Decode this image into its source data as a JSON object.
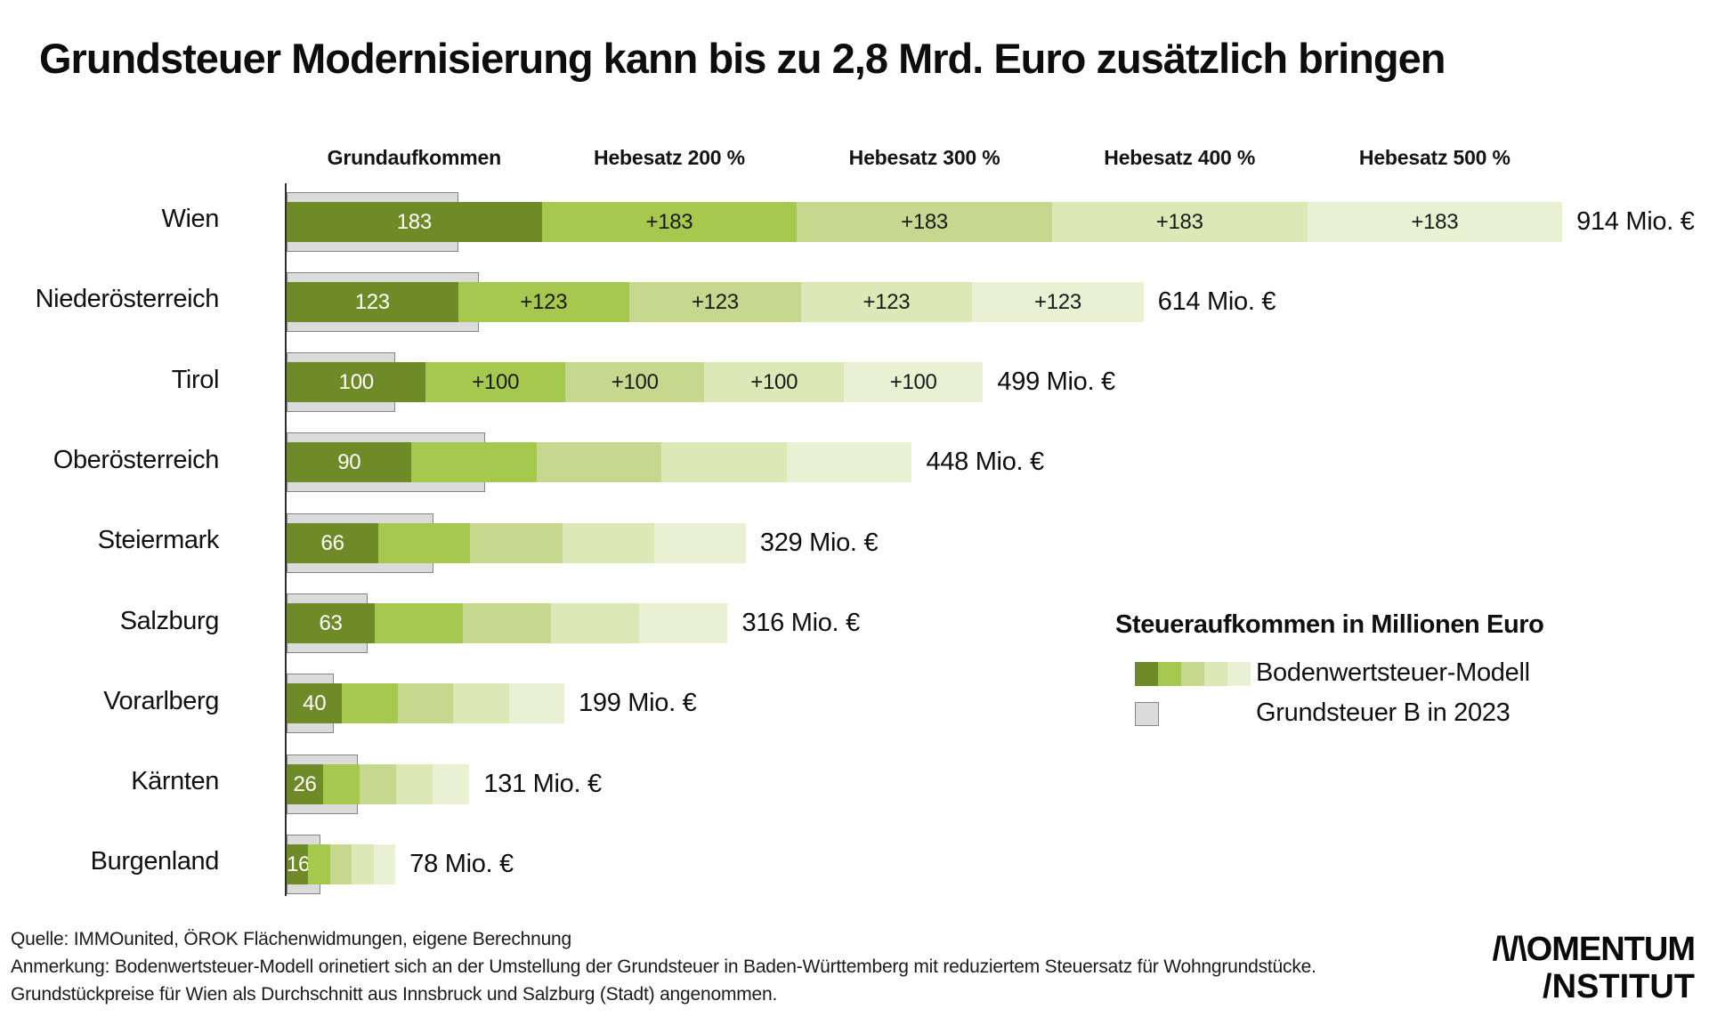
{
  "title": "Grundsteuer Modernisierung kann bis zu 2,8 Mrd. Euro zusätzlich bringen",
  "chart_data": {
    "type": "bar",
    "orientation": "horizontal",
    "stacked": true,
    "unit": "Mio. €",
    "column_headers": [
      "Grundaufkommen",
      "Hebesatz 200 %",
      "Hebesatz 300 %",
      "Hebesatz 400 %",
      "Hebesatz 500 %"
    ],
    "rows": [
      {
        "category": "Wien",
        "segment_value": 183,
        "segment_labels": [
          "183",
          "+183",
          "+183",
          "+183",
          "+183"
        ],
        "total_value": 914,
        "total_label": "914 Mio. €",
        "grundsteuer_b_2023": 123
      },
      {
        "category": "Niederösterreich",
        "segment_value": 123,
        "segment_labels": [
          "123",
          "+123",
          "+123",
          "+123",
          "+123"
        ],
        "total_value": 614,
        "total_label": "614 Mio. €",
        "grundsteuer_b_2023": 138
      },
      {
        "category": "Tirol",
        "segment_value": 100,
        "segment_labels": [
          "100",
          "+100",
          "+100",
          "+100",
          "+100"
        ],
        "total_value": 499,
        "total_label": "499 Mio. €",
        "grundsteuer_b_2023": 78
      },
      {
        "category": "Oberösterreich",
        "segment_value": 90,
        "segment_labels": [
          "90",
          "",
          "",
          "",
          ""
        ],
        "total_value": 448,
        "total_label": "448 Mio. €",
        "grundsteuer_b_2023": 142
      },
      {
        "category": "Steiermark",
        "segment_value": 66,
        "segment_labels": [
          "66",
          "",
          "",
          "",
          ""
        ],
        "total_value": 329,
        "total_label": "329 Mio. €",
        "grundsteuer_b_2023": 105
      },
      {
        "category": "Salzburg",
        "segment_value": 63,
        "segment_labels": [
          "63",
          "",
          "",
          "",
          ""
        ],
        "total_value": 316,
        "total_label": "316 Mio. €",
        "grundsteuer_b_2023": 58
      },
      {
        "category": "Vorarlberg",
        "segment_value": 40,
        "segment_labels": [
          "40",
          "",
          "",
          "",
          ""
        ],
        "total_value": 199,
        "total_label": "199 Mio. €",
        "grundsteuer_b_2023": 34
      },
      {
        "category": "Kärnten",
        "segment_value": 26,
        "segment_labels": [
          "26",
          "",
          "",
          "",
          ""
        ],
        "total_value": 131,
        "total_label": "131 Mio. €",
        "grundsteuer_b_2023": 51
      },
      {
        "category": "Burgenland",
        "segment_value": 16,
        "segment_labels": [
          "16",
          "",
          "",
          "",
          ""
        ],
        "total_value": 78,
        "total_label": "78 Mio. €",
        "grundsteuer_b_2023": 24
      }
    ],
    "colors": {
      "segments": [
        "#6f8b28",
        "#a6c84e",
        "#c5d88d",
        "#dce8b6",
        "#eaf1d3"
      ],
      "grundsteuer_b_fill": "#dbdbdb",
      "grundsteuer_b_border": "#858585",
      "axis": "#2e2e2e"
    }
  },
  "legend": {
    "title": "Steueraufkommen in Millionen Euro",
    "items": [
      {
        "label": "Bodenwertsteuer-Modell",
        "swatch": "green-gradient"
      },
      {
        "label": "Grundsteuer B in 2023",
        "swatch": "gray"
      }
    ]
  },
  "notes": [
    "Quelle: IMMOunited, ÖROK Flächenwidmungen, eigene Berechnung",
    "Anmerkung: Bodenwertsteuer-Modell orinetiert sich an der Umstellung der Grundsteuer in Baden-Württemberg mit reduziertem Steuersatz für Wohngrundstücke.",
    "Grundstückpreise für Wien als Durchschnitt aus Innsbruck und Salzburg (Stadt) angenommen."
  ],
  "logo": {
    "line1": "/\\/\\OMENTUM",
    "line2": "/NSTITUT"
  }
}
